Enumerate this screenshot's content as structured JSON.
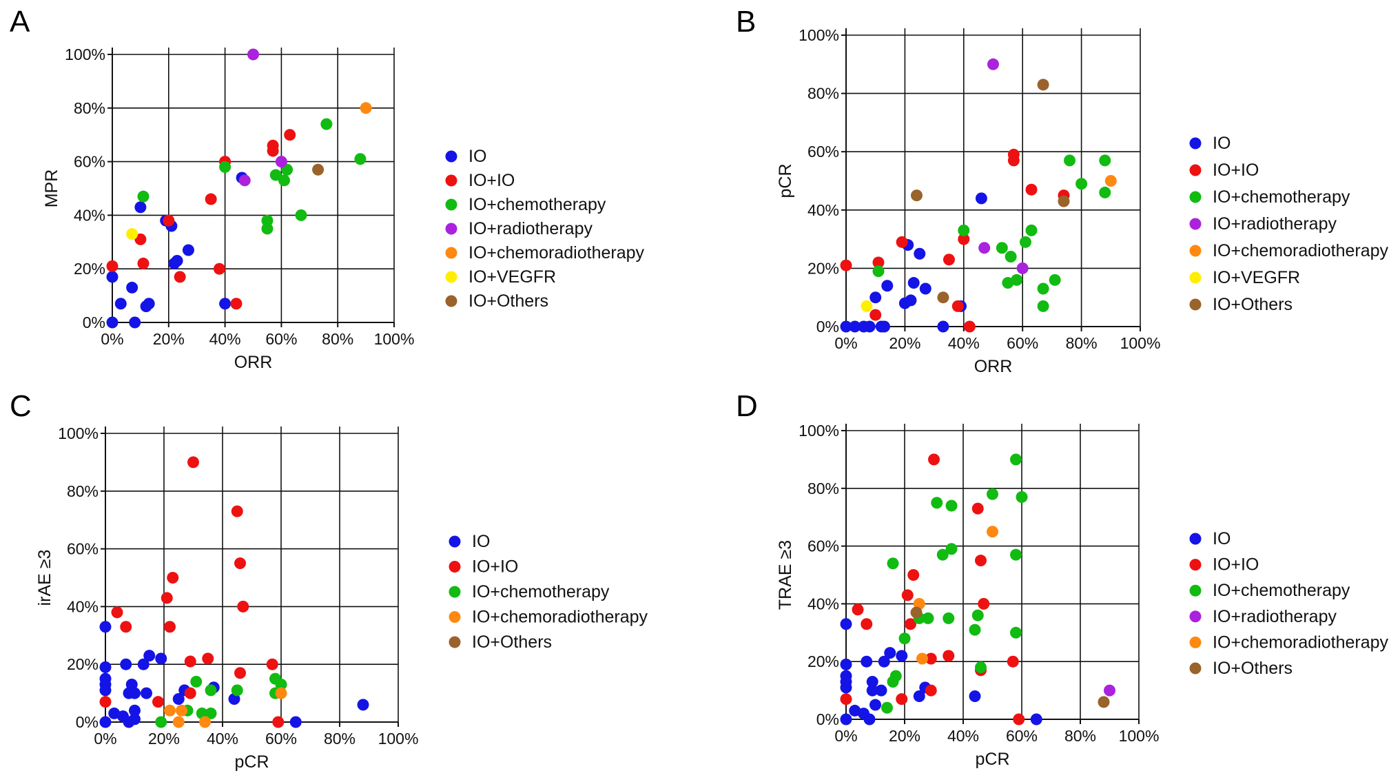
{
  "colors": {
    "IO": "#1414e6",
    "IO+IO": "#ee1111",
    "IO+chemotherapy": "#11bb11",
    "IO+radiotherapy": "#aa22dd",
    "IO+chemoradiotherapy": "#ff8811",
    "IO+VEGFR": "#ffee00",
    "IO+Others": "#99632b"
  },
  "chart_data": [
    {
      "panel": "A",
      "type": "scatter",
      "xlabel": "ORR",
      "ylabel": "MPR",
      "xlim": [
        0,
        100
      ],
      "ylim": [
        0,
        100
      ],
      "xticks": [
        "0%",
        "20%",
        "40%",
        "60%",
        "80%",
        "100%"
      ],
      "yticks": [
        "0%",
        "20%",
        "40%",
        "60%",
        "80%",
        "100%"
      ],
      "grid": true,
      "legend_position": "right",
      "legend": [
        "IO",
        "IO+IO",
        "IO+chemotherapy",
        "IO+radiotherapy",
        "IO+chemoradiotherapy",
        "IO+VEGFR",
        "IO+Others"
      ],
      "series": [
        {
          "name": "IO",
          "points": [
            [
              0,
              0
            ],
            [
              0,
              17
            ],
            [
              3,
              7
            ],
            [
              7,
              13
            ],
            [
              8,
              0
            ],
            [
              10,
              43
            ],
            [
              12,
              6
            ],
            [
              13,
              7
            ],
            [
              19,
              38
            ],
            [
              21,
              36
            ],
            [
              22,
              22
            ],
            [
              23,
              23
            ],
            [
              27,
              27
            ],
            [
              40,
              7
            ],
            [
              46,
              54
            ]
          ]
        },
        {
          "name": "IO+IO",
          "points": [
            [
              0,
              21
            ],
            [
              10,
              31
            ],
            [
              11,
              22
            ],
            [
              20,
              38
            ],
            [
              24,
              17
            ],
            [
              35,
              46
            ],
            [
              38,
              20
            ],
            [
              40,
              60
            ],
            [
              44,
              7
            ],
            [
              57,
              64
            ],
            [
              57,
              66
            ],
            [
              63,
              70
            ]
          ]
        },
        {
          "name": "IO+chemotherapy",
          "points": [
            [
              11,
              47
            ],
            [
              40,
              58
            ],
            [
              55,
              35
            ],
            [
              55,
              38
            ],
            [
              58,
              55
            ],
            [
              61,
              53
            ],
            [
              62,
              57
            ],
            [
              67,
              40
            ],
            [
              76,
              74
            ],
            [
              88,
              61
            ]
          ]
        },
        {
          "name": "IO+radiotherapy",
          "points": [
            [
              50,
              100
            ],
            [
              60,
              60
            ],
            [
              47,
              53
            ]
          ]
        },
        {
          "name": "IO+chemoradiotherapy",
          "points": [
            [
              90,
              80
            ]
          ]
        },
        {
          "name": "IO+VEGFR",
          "points": [
            [
              7,
              33
            ]
          ]
        },
        {
          "name": "IO+Others",
          "points": [
            [
              73,
              57
            ]
          ]
        }
      ]
    },
    {
      "panel": "B",
      "type": "scatter",
      "xlabel": "ORR",
      "ylabel": "pCR",
      "xlim": [
        0,
        100
      ],
      "ylim": [
        0,
        100
      ],
      "xticks": [
        "0%",
        "20%",
        "40%",
        "60%",
        "80%",
        "100%"
      ],
      "yticks": [
        "0%",
        "20%",
        "40%",
        "60%",
        "80%",
        "100%"
      ],
      "grid": true,
      "legend_position": "right",
      "legend": [
        "IO",
        "IO+IO",
        "IO+chemotherapy",
        "IO+radiotherapy",
        "IO+chemoradiotherapy",
        "IO+VEGFR",
        "IO+Others"
      ],
      "series": [
        {
          "name": "IO",
          "points": [
            [
              0,
              0
            ],
            [
              3,
              0
            ],
            [
              6,
              0
            ],
            [
              8,
              0
            ],
            [
              10,
              10
            ],
            [
              12,
              0
            ],
            [
              13,
              0
            ],
            [
              14,
              14
            ],
            [
              20,
              8
            ],
            [
              21,
              28
            ],
            [
              22,
              9
            ],
            [
              23,
              15
            ],
            [
              25,
              25
            ],
            [
              27,
              13
            ],
            [
              33,
              0
            ],
            [
              39,
              7
            ],
            [
              46,
              44
            ]
          ]
        },
        {
          "name": "IO+IO",
          "points": [
            [
              0,
              21
            ],
            [
              10,
              4
            ],
            [
              11,
              22
            ],
            [
              19,
              29
            ],
            [
              35,
              23
            ],
            [
              38,
              7
            ],
            [
              40,
              30
            ],
            [
              42,
              0
            ],
            [
              57,
              57
            ],
            [
              57,
              59
            ],
            [
              63,
              47
            ],
            [
              74,
              45
            ]
          ]
        },
        {
          "name": "IO+chemotherapy",
          "points": [
            [
              11,
              19
            ],
            [
              40,
              33
            ],
            [
              53,
              27
            ],
            [
              55,
              15
            ],
            [
              56,
              24
            ],
            [
              58,
              16
            ],
            [
              61,
              29
            ],
            [
              63,
              33
            ],
            [
              67,
              13
            ],
            [
              67,
              7
            ],
            [
              71,
              16
            ],
            [
              76,
              57
            ],
            [
              80,
              49
            ],
            [
              88,
              46
            ],
            [
              88,
              57
            ]
          ]
        },
        {
          "name": "IO+radiotherapy",
          "points": [
            [
              50,
              90
            ],
            [
              47,
              27
            ],
            [
              60,
              20
            ]
          ]
        },
        {
          "name": "IO+chemoradiotherapy",
          "points": [
            [
              90,
              50
            ]
          ]
        },
        {
          "name": "IO+VEGFR",
          "points": [
            [
              7,
              7
            ]
          ]
        },
        {
          "name": "IO+Others",
          "points": [
            [
              24,
              45
            ],
            [
              33,
              10
            ],
            [
              67,
              83
            ],
            [
              74,
              43
            ]
          ]
        }
      ]
    },
    {
      "panel": "C",
      "type": "scatter",
      "xlabel": "pCR",
      "ylabel": "irAE ≥3",
      "xlim": [
        0,
        100
      ],
      "ylim": [
        0,
        100
      ],
      "xticks": [
        "0%",
        "20%",
        "40%",
        "60%",
        "80%",
        "100%"
      ],
      "yticks": [
        "0%",
        "20%",
        "40%",
        "60%",
        "80%",
        "100%"
      ],
      "grid": true,
      "legend_position": "right",
      "legend": [
        "IO",
        "IO+IO",
        "IO+chemotherapy",
        "IO+chemoradiotherapy",
        "IO+Others"
      ],
      "series": [
        {
          "name": "IO",
          "points": [
            [
              0,
              0
            ],
            [
              0,
              11
            ],
            [
              0,
              13
            ],
            [
              0,
              15
            ],
            [
              0,
              19
            ],
            [
              0,
              33
            ],
            [
              3,
              3
            ],
            [
              6,
              2
            ],
            [
              7,
              20
            ],
            [
              8,
              0
            ],
            [
              8,
              10
            ],
            [
              9,
              13
            ],
            [
              10,
              1
            ],
            [
              10,
              4
            ],
            [
              10,
              10
            ],
            [
              13,
              20
            ],
            [
              14,
              10
            ],
            [
              15,
              23
            ],
            [
              19,
              22
            ],
            [
              25,
              8
            ],
            [
              27,
              11
            ],
            [
              37,
              12
            ],
            [
              44,
              8
            ],
            [
              65,
              0
            ],
            [
              88,
              6
            ]
          ]
        },
        {
          "name": "IO+IO",
          "points": [
            [
              0,
              7
            ],
            [
              4,
              38
            ],
            [
              7,
              33
            ],
            [
              18,
              7
            ],
            [
              21,
              43
            ],
            [
              22,
              33
            ],
            [
              23,
              50
            ],
            [
              29,
              21
            ],
            [
              29,
              10
            ],
            [
              30,
              90
            ],
            [
              35,
              22
            ],
            [
              45,
              73
            ],
            [
              46,
              55
            ],
            [
              46,
              17
            ],
            [
              47,
              40
            ],
            [
              57,
              20
            ],
            [
              59,
              0
            ]
          ]
        },
        {
          "name": "IO+chemotherapy",
          "points": [
            [
              19,
              0
            ],
            [
              28,
              4
            ],
            [
              31,
              14
            ],
            [
              33,
              3
            ],
            [
              36,
              3
            ],
            [
              36,
              11
            ],
            [
              45,
              11
            ],
            [
              58,
              10
            ],
            [
              58,
              15
            ],
            [
              60,
              13
            ]
          ]
        },
        {
          "name": "IO+chemoradiotherapy",
          "points": [
            [
              22,
              4
            ],
            [
              25,
              0
            ],
            [
              26,
              4
            ],
            [
              34,
              0
            ],
            [
              60,
              10
            ]
          ]
        },
        {
          "name": "IO+Others",
          "points": []
        }
      ]
    },
    {
      "panel": "D",
      "type": "scatter",
      "xlabel": "pCR",
      "ylabel": "TRAE ≥3",
      "xlim": [
        0,
        100
      ],
      "ylim": [
        0,
        100
      ],
      "xticks": [
        "0%",
        "20%",
        "40%",
        "60%",
        "80%",
        "100%"
      ],
      "yticks": [
        "0%",
        "20%",
        "40%",
        "60%",
        "80%",
        "100%"
      ],
      "grid": true,
      "legend_position": "right",
      "legend": [
        "IO",
        "IO+IO",
        "IO+chemotherapy",
        "IO+radiotherapy",
        "IO+chemoradiotherapy",
        "IO+Others"
      ],
      "series": [
        {
          "name": "IO",
          "points": [
            [
              0,
              0
            ],
            [
              0,
              11
            ],
            [
              0,
              13
            ],
            [
              0,
              15
            ],
            [
              0,
              19
            ],
            [
              0,
              33
            ],
            [
              3,
              3
            ],
            [
              6,
              2
            ],
            [
              7,
              20
            ],
            [
              8,
              0
            ],
            [
              9,
              10
            ],
            [
              9,
              13
            ],
            [
              10,
              5
            ],
            [
              12,
              10
            ],
            [
              13,
              20
            ],
            [
              15,
              23
            ],
            [
              19,
              22
            ],
            [
              25,
              8
            ],
            [
              27,
              11
            ],
            [
              44,
              8
            ],
            [
              65,
              0
            ]
          ]
        },
        {
          "name": "IO+IO",
          "points": [
            [
              0,
              7
            ],
            [
              4,
              38
            ],
            [
              7,
              33
            ],
            [
              19,
              7
            ],
            [
              21,
              43
            ],
            [
              22,
              33
            ],
            [
              23,
              50
            ],
            [
              29,
              21
            ],
            [
              29,
              10
            ],
            [
              30,
              90
            ],
            [
              35,
              22
            ],
            [
              45,
              73
            ],
            [
              46,
              55
            ],
            [
              46,
              17
            ],
            [
              47,
              40
            ],
            [
              57,
              20
            ],
            [
              59,
              0
            ]
          ]
        },
        {
          "name": "IO+chemotherapy",
          "points": [
            [
              14,
              4
            ],
            [
              16,
              13
            ],
            [
              16,
              54
            ],
            [
              17,
              15
            ],
            [
              20,
              28
            ],
            [
              25,
              35
            ],
            [
              28,
              35
            ],
            [
              31,
              75
            ],
            [
              33,
              57
            ],
            [
              35,
              35
            ],
            [
              36,
              74
            ],
            [
              36,
              59
            ],
            [
              44,
              31
            ],
            [
              45,
              36
            ],
            [
              46,
              18
            ],
            [
              50,
              78
            ],
            [
              58,
              90
            ],
            [
              58,
              30
            ],
            [
              58,
              57
            ],
            [
              60,
              77
            ]
          ]
        },
        {
          "name": "IO+radiotherapy",
          "points": [
            [
              90,
              10
            ]
          ]
        },
        {
          "name": "IO+chemoradiotherapy",
          "points": [
            [
              25,
              40
            ],
            [
              26,
              21
            ],
            [
              50,
              65
            ]
          ]
        },
        {
          "name": "IO+Others",
          "points": [
            [
              24,
              37
            ],
            [
              88,
              6
            ]
          ]
        }
      ]
    }
  ]
}
